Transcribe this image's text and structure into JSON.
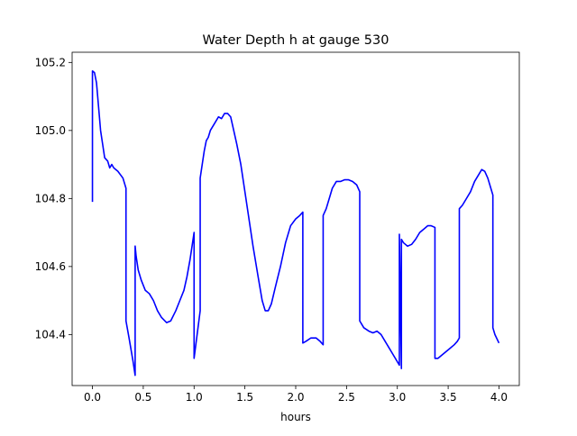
{
  "chart_data": {
    "type": "line",
    "title": "Water Depth h at gauge 530",
    "xlabel": "hours",
    "ylabel": "",
    "xlim": [
      -0.2,
      4.2
    ],
    "ylim": [
      104.25,
      105.23
    ],
    "x_ticks": [
      0.0,
      0.5,
      1.0,
      1.5,
      2.0,
      2.5,
      3.0,
      3.5,
      4.0
    ],
    "x_tick_labels": [
      "0.0",
      "0.5",
      "1.0",
      "1.5",
      "2.0",
      "2.5",
      "3.0",
      "3.5",
      "4.0"
    ],
    "y_ticks": [
      104.4,
      104.6,
      104.8,
      105.0,
      105.2
    ],
    "y_tick_labels": [
      "104.4",
      "104.6",
      "104.8",
      "105.0",
      "105.2"
    ],
    "grid": false,
    "colors": {
      "line": "#0000ff",
      "axes": "#000000",
      "background": "#ffffff"
    },
    "series": [
      {
        "x": [
          0.0,
          0.0,
          0.02,
          0.04,
          0.06,
          0.08,
          0.1,
          0.12,
          0.15,
          0.17,
          0.19,
          0.2,
          0.21,
          0.25,
          0.3,
          0.33,
          0.33,
          0.36,
          0.4,
          0.42,
          0.42,
          0.43,
          0.45,
          0.48,
          0.52,
          0.56,
          0.6,
          0.64,
          0.68,
          0.73,
          0.77,
          0.82,
          0.86,
          0.9,
          0.93,
          0.96,
          0.98,
          1.0,
          1.0,
          1.03,
          1.06,
          1.06,
          1.07,
          1.09,
          1.1,
          1.12,
          1.14,
          1.16,
          1.2,
          1.24,
          1.27,
          1.3,
          1.33,
          1.36,
          1.39,
          1.42,
          1.46,
          1.5,
          1.54,
          1.58,
          1.63,
          1.67,
          1.7,
          1.73,
          1.76,
          1.8,
          1.85,
          1.9,
          1.95,
          2.0,
          2.04,
          2.07,
          2.07,
          2.1,
          2.15,
          2.2,
          2.24,
          2.27,
          2.27,
          2.3,
          2.33,
          2.36,
          2.4,
          2.44,
          2.48,
          2.52,
          2.56,
          2.6,
          2.63,
          2.63,
          2.67,
          2.72,
          2.76,
          2.8,
          2.84,
          2.88,
          2.92,
          2.96,
          3.0,
          3.02,
          3.02,
          3.03,
          3.04,
          3.04,
          3.06,
          3.1,
          3.14,
          3.18,
          3.22,
          3.26,
          3.3,
          3.33,
          3.37,
          3.37,
          3.4,
          3.44,
          3.48,
          3.52,
          3.56,
          3.59,
          3.61,
          3.61,
          3.64,
          3.68,
          3.72,
          3.76,
          3.8,
          3.83,
          3.86,
          3.89,
          3.92,
          3.94,
          3.94,
          3.96,
          4.0
        ],
        "y": [
          104.79,
          105.175,
          105.17,
          105.14,
          105.07,
          105.0,
          104.96,
          104.92,
          104.91,
          104.89,
          104.9,
          104.895,
          104.89,
          104.88,
          104.86,
          104.83,
          104.44,
          104.39,
          104.32,
          104.28,
          104.66,
          104.63,
          104.59,
          104.56,
          104.53,
          104.52,
          104.5,
          104.47,
          104.45,
          104.435,
          104.44,
          104.47,
          104.5,
          104.53,
          104.57,
          104.62,
          104.66,
          104.7,
          104.33,
          104.4,
          104.47,
          104.86,
          104.88,
          104.92,
          104.94,
          104.97,
          104.98,
          105.0,
          105.02,
          105.04,
          105.035,
          105.05,
          105.05,
          105.04,
          105.0,
          104.96,
          104.9,
          104.82,
          104.74,
          104.66,
          104.57,
          104.5,
          104.47,
          104.47,
          104.49,
          104.54,
          104.6,
          104.67,
          104.72,
          104.74,
          104.75,
          104.76,
          104.375,
          104.38,
          104.39,
          104.39,
          104.38,
          104.37,
          104.75,
          104.77,
          104.8,
          104.83,
          104.85,
          104.85,
          104.855,
          104.855,
          104.85,
          104.84,
          104.82,
          104.44,
          104.42,
          104.41,
          104.405,
          104.41,
          104.4,
          104.38,
          104.36,
          104.34,
          104.32,
          104.31,
          104.695,
          104.5,
          104.3,
          104.68,
          104.67,
          104.66,
          104.665,
          104.68,
          104.7,
          104.71,
          104.72,
          104.72,
          104.715,
          104.33,
          104.33,
          104.34,
          104.35,
          104.36,
          104.37,
          104.38,
          104.39,
          104.77,
          104.78,
          104.8,
          104.82,
          104.85,
          104.87,
          104.885,
          104.88,
          104.86,
          104.83,
          104.81,
          104.42,
          104.4,
          104.375
        ]
      }
    ]
  }
}
